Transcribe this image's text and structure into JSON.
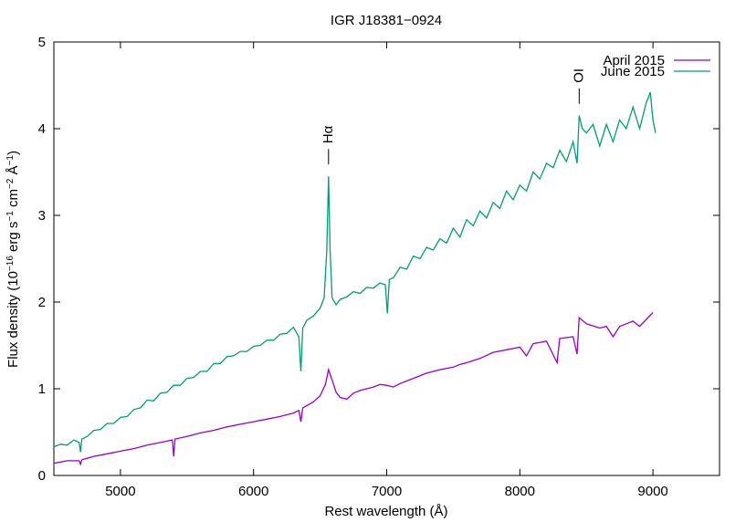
{
  "chart_data": {
    "type": "line",
    "title": "IGR J18381−0924",
    "xlabel": "Rest wavelength (Å)",
    "ylabel": [
      "Flux density (10",
      "−16",
      " erg s",
      "−1",
      " cm",
      "−2",
      " Å",
      "−1",
      ")"
    ],
    "xlim": [
      4500,
      9500
    ],
    "xticks": [
      5000,
      6000,
      7000,
      8000,
      9000
    ],
    "ylim": [
      0,
      5
    ],
    "yticks": [
      0,
      1,
      2,
      3,
      4,
      5
    ],
    "grid": false,
    "legend": "top-right",
    "annotations": [
      {
        "text": "Hα",
        "x": 6563
      },
      {
        "text": "OI",
        "x": 8446
      }
    ],
    "series": [
      {
        "name": "April 2015",
        "color": "#9400d3",
        "x": [
          4500,
          4600,
          4690,
          4700,
          4710,
          4800,
          4900,
          5000,
          5100,
          5200,
          5300,
          5390,
          5400,
          5410,
          5500,
          5600,
          5700,
          5800,
          5900,
          6000,
          6100,
          6200,
          6300,
          6340,
          6355,
          6370,
          6450,
          6500,
          6540,
          6563,
          6590,
          6620,
          6650,
          6700,
          6750,
          6800,
          6850,
          6900,
          6950,
          7000,
          7050,
          7100,
          7200,
          7300,
          7400,
          7500,
          7550,
          7600,
          7700,
          7800,
          7900,
          8000,
          8050,
          8100,
          8200,
          8280,
          8300,
          8400,
          8430,
          8446,
          8500,
          8600,
          8650,
          8700,
          8750,
          8800,
          8850,
          8900,
          8950,
          9000
        ],
        "values": [
          0.14,
          0.17,
          0.17,
          0.13,
          0.18,
          0.22,
          0.25,
          0.28,
          0.31,
          0.35,
          0.38,
          0.41,
          0.22,
          0.42,
          0.45,
          0.49,
          0.52,
          0.56,
          0.59,
          0.62,
          0.65,
          0.68,
          0.72,
          0.75,
          0.62,
          0.78,
          0.85,
          0.92,
          1.05,
          1.22,
          1.1,
          0.96,
          0.9,
          0.88,
          0.95,
          0.98,
          1.0,
          1.02,
          1.05,
          1.04,
          1.02,
          1.06,
          1.12,
          1.18,
          1.22,
          1.25,
          1.28,
          1.3,
          1.35,
          1.42,
          1.45,
          1.48,
          1.38,
          1.52,
          1.55,
          1.3,
          1.58,
          1.6,
          1.4,
          1.82,
          1.75,
          1.7,
          1.72,
          1.6,
          1.72,
          1.75,
          1.78,
          1.72,
          1.8,
          1.88
        ]
      },
      {
        "name": "June 2015",
        "color": "#009e73",
        "x": [
          4500,
          4550,
          4600,
          4650,
          4690,
          4700,
          4710,
          4750,
          4800,
          4850,
          4900,
          4950,
          5000,
          5050,
          5100,
          5150,
          5200,
          5250,
          5300,
          5350,
          5400,
          5450,
          5500,
          5550,
          5600,
          5650,
          5700,
          5750,
          5800,
          5850,
          5900,
          5950,
          6000,
          6050,
          6100,
          6150,
          6200,
          6250,
          6300,
          6340,
          6355,
          6370,
          6400,
          6450,
          6500,
          6530,
          6550,
          6563,
          6575,
          6590,
          6620,
          6650,
          6700,
          6750,
          6800,
          6850,
          6900,
          6950,
          6990,
          7005,
          7020,
          7050,
          7100,
          7150,
          7200,
          7250,
          7300,
          7350,
          7400,
          7450,
          7500,
          7550,
          7600,
          7650,
          7700,
          7750,
          7800,
          7850,
          7900,
          7950,
          8000,
          8050,
          8100,
          8150,
          8200,
          8250,
          8300,
          8350,
          8400,
          8430,
          8446,
          8470,
          8500,
          8550,
          8600,
          8650,
          8700,
          8750,
          8800,
          8850,
          8900,
          8950,
          8980,
          9000,
          9020
        ],
        "values": [
          0.33,
          0.36,
          0.35,
          0.41,
          0.38,
          0.27,
          0.42,
          0.45,
          0.52,
          0.53,
          0.6,
          0.6,
          0.67,
          0.68,
          0.76,
          0.78,
          0.87,
          0.86,
          0.95,
          0.96,
          1.04,
          1.04,
          1.12,
          1.13,
          1.2,
          1.2,
          1.29,
          1.29,
          1.37,
          1.38,
          1.43,
          1.43,
          1.49,
          1.5,
          1.56,
          1.56,
          1.63,
          1.64,
          1.71,
          1.6,
          1.2,
          1.7,
          1.79,
          1.84,
          1.93,
          2.05,
          2.6,
          3.45,
          2.6,
          2.05,
          1.97,
          2.03,
          2.06,
          2.12,
          2.1,
          2.17,
          2.16,
          2.22,
          2.2,
          1.87,
          2.26,
          2.28,
          2.4,
          2.38,
          2.53,
          2.5,
          2.63,
          2.6,
          2.73,
          2.68,
          2.85,
          2.75,
          2.95,
          2.88,
          3.05,
          2.97,
          3.15,
          3.08,
          3.28,
          3.18,
          3.35,
          3.28,
          3.5,
          3.42,
          3.6,
          3.55,
          3.75,
          3.62,
          3.85,
          3.6,
          4.15,
          4.0,
          3.95,
          4.05,
          3.8,
          4.05,
          3.85,
          4.1,
          4.0,
          4.25,
          4.0,
          4.3,
          4.42,
          4.1,
          3.95
        ]
      }
    ]
  }
}
